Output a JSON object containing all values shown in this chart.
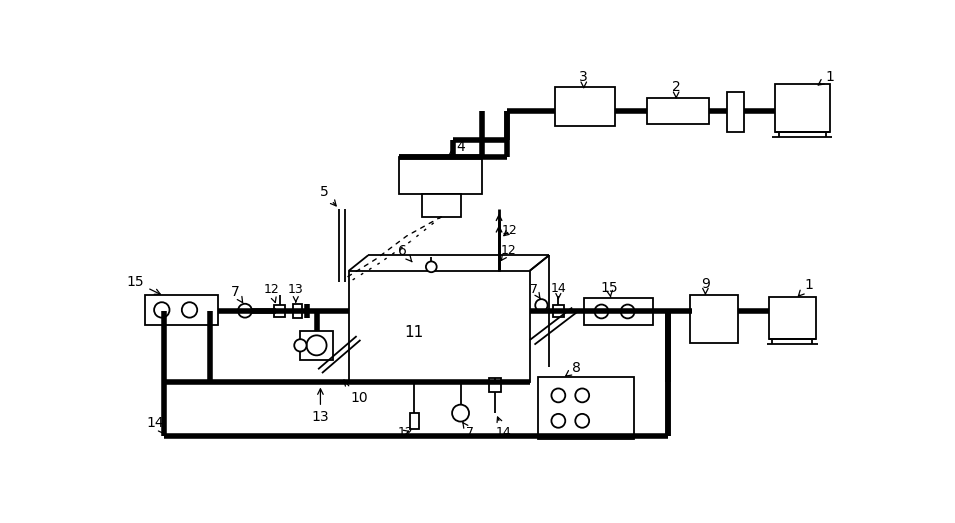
{
  "bg_color": "#ffffff",
  "lw_thick": 4.0,
  "lw_thin": 1.3,
  "lw_med": 2.0
}
